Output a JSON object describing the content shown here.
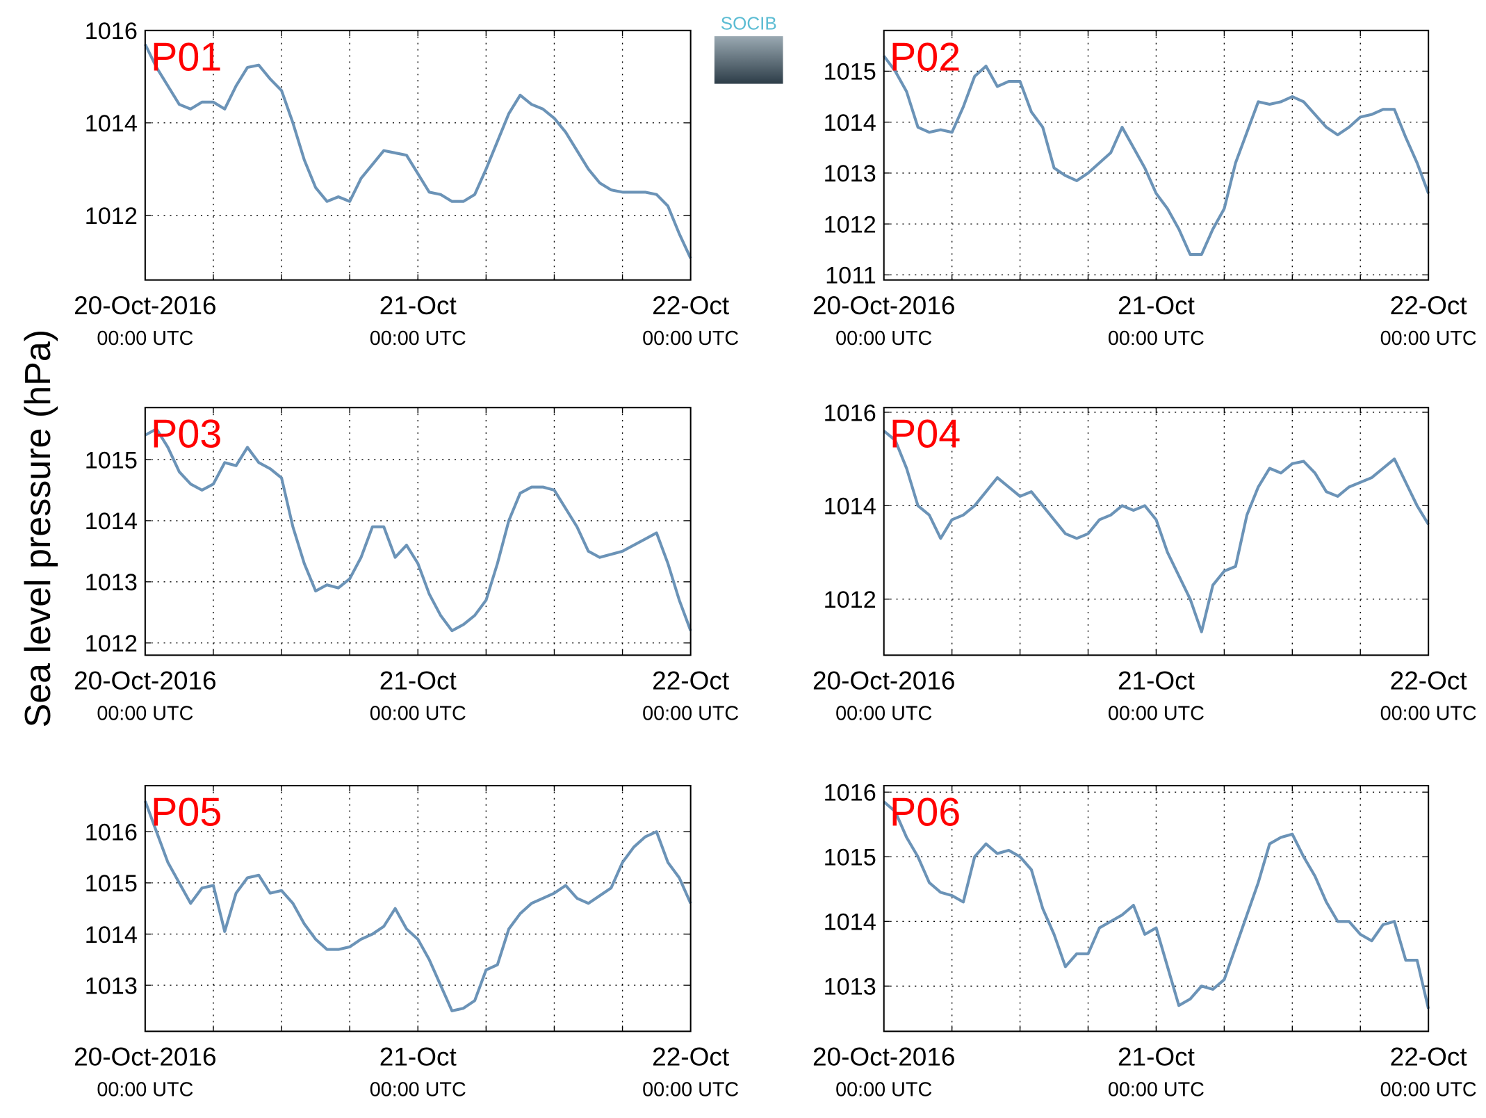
{
  "ylabel": "Sea level pressure (hPa)",
  "logo": "SOCIB",
  "chart_data": [
    {
      "type": "line",
      "title": "P01",
      "color": "#6b93b7",
      "grid": true,
      "xlim": [
        0,
        48
      ],
      "ylim": [
        1010.6,
        1016
      ],
      "yticks": [
        1012,
        1014,
        1016
      ],
      "xticks": [
        {
          "value": 0,
          "label": [
            "20-Oct-2016",
            "00:00 UTC"
          ]
        },
        {
          "value": 6,
          "label": null
        },
        {
          "value": 12,
          "label": null
        },
        {
          "value": 18,
          "label": null
        },
        {
          "value": 24,
          "label": [
            "21-Oct",
            "00:00 UTC"
          ]
        },
        {
          "value": 30,
          "label": null
        },
        {
          "value": 36,
          "label": null
        },
        {
          "value": 42,
          "label": null
        },
        {
          "value": 48,
          "label": [
            "22-Oct",
            "00:00 UTC"
          ]
        }
      ],
      "x": [
        0,
        1,
        2,
        3,
        4,
        5,
        6,
        7,
        8,
        9,
        10,
        11,
        12,
        13,
        14,
        15,
        16,
        17,
        18,
        19,
        20,
        21,
        22,
        23,
        24,
        25,
        26,
        27,
        28,
        29,
        30,
        31,
        32,
        33,
        34,
        35,
        36,
        37,
        38,
        39,
        40,
        41,
        42,
        43,
        44,
        45,
        46,
        47,
        48
      ],
      "values": [
        1015.7,
        1015.2,
        1014.8,
        1014.4,
        1014.3,
        1014.45,
        1014.45,
        1014.3,
        1014.8,
        1015.2,
        1015.25,
        1014.95,
        1014.7,
        1014.0,
        1013.2,
        1012.6,
        1012.3,
        1012.4,
        1012.3,
        1012.8,
        1013.1,
        1013.4,
        1013.35,
        1013.3,
        1012.9,
        1012.5,
        1012.45,
        1012.3,
        1012.3,
        1012.45,
        1013.0,
        1013.6,
        1014.2,
        1014.6,
        1014.4,
        1014.3,
        1014.1,
        1013.8,
        1013.4,
        1013.0,
        1012.7,
        1012.55,
        1012.5,
        1012.5,
        1012.5,
        1012.45,
        1012.2,
        1011.6,
        1011.07
      ]
    },
    {
      "type": "line",
      "title": "P02",
      "color": "#6b93b7",
      "grid": true,
      "xlim": [
        0,
        48
      ],
      "ylim": [
        1010.9,
        1015.8
      ],
      "yticks": [
        1011,
        1012,
        1013,
        1014,
        1015
      ],
      "xticks": [
        {
          "value": 0,
          "label": [
            "20-Oct-2016",
            "00:00 UTC"
          ]
        },
        {
          "value": 6,
          "label": null
        },
        {
          "value": 12,
          "label": null
        },
        {
          "value": 18,
          "label": null
        },
        {
          "value": 24,
          "label": [
            "21-Oct",
            "00:00 UTC"
          ]
        },
        {
          "value": 30,
          "label": null
        },
        {
          "value": 36,
          "label": null
        },
        {
          "value": 42,
          "label": null
        },
        {
          "value": 48,
          "label": [
            "22-Oct",
            "00:00 UTC"
          ]
        }
      ],
      "x": [
        0,
        1,
        2,
        3,
        4,
        5,
        6,
        7,
        8,
        9,
        10,
        11,
        12,
        13,
        14,
        15,
        16,
        17,
        18,
        19,
        20,
        21,
        22,
        23,
        24,
        25,
        26,
        27,
        28,
        29,
        30,
        31,
        32,
        33,
        34,
        35,
        36,
        37,
        38,
        39,
        40,
        41,
        42,
        43,
        44,
        45,
        46,
        47,
        48
      ],
      "values": [
        1015.3,
        1015.0,
        1014.6,
        1013.9,
        1013.8,
        1013.85,
        1013.8,
        1014.3,
        1014.9,
        1015.1,
        1014.7,
        1014.8,
        1014.8,
        1014.2,
        1013.9,
        1013.1,
        1012.95,
        1012.85,
        1013.0,
        1013.2,
        1013.4,
        1013.9,
        1013.5,
        1013.1,
        1012.6,
        1012.3,
        1011.9,
        1011.4,
        1011.4,
        1011.9,
        1012.3,
        1013.2,
        1013.8,
        1014.4,
        1014.35,
        1014.4,
        1014.5,
        1014.4,
        1014.15,
        1013.9,
        1013.75,
        1013.9,
        1014.1,
        1014.15,
        1014.25,
        1014.25,
        1013.7,
        1013.2,
        1012.6
      ]
    },
    {
      "type": "line",
      "title": "P03",
      "color": "#6b93b7",
      "grid": true,
      "xlim": [
        0,
        48
      ],
      "ylim": [
        1011.8,
        1015.85
      ],
      "yticks": [
        1012,
        1013,
        1014,
        1015
      ],
      "xticks": [
        {
          "value": 0,
          "label": [
            "20-Oct-2016",
            "00:00 UTC"
          ]
        },
        {
          "value": 6,
          "label": null
        },
        {
          "value": 12,
          "label": null
        },
        {
          "value": 18,
          "label": null
        },
        {
          "value": 24,
          "label": [
            "21-Oct",
            "00:00 UTC"
          ]
        },
        {
          "value": 30,
          "label": null
        },
        {
          "value": 36,
          "label": null
        },
        {
          "value": 42,
          "label": null
        },
        {
          "value": 48,
          "label": [
            "22-Oct",
            "00:00 UTC"
          ]
        }
      ],
      "x": [
        0,
        1,
        2,
        3,
        4,
        5,
        6,
        7,
        8,
        9,
        10,
        11,
        12,
        13,
        14,
        15,
        16,
        17,
        18,
        19,
        20,
        21,
        22,
        23,
        24,
        25,
        26,
        27,
        28,
        29,
        30,
        31,
        32,
        33,
        34,
        35,
        36,
        37,
        38,
        39,
        40,
        41,
        42,
        43,
        44,
        45,
        46,
        47,
        48
      ],
      "values": [
        1015.4,
        1015.5,
        1015.2,
        1014.8,
        1014.6,
        1014.5,
        1014.6,
        1014.95,
        1014.9,
        1015.2,
        1014.95,
        1014.85,
        1014.7,
        1013.9,
        1013.3,
        1012.85,
        1012.95,
        1012.9,
        1013.05,
        1013.4,
        1013.9,
        1013.9,
        1013.4,
        1013.6,
        1013.3,
        1012.8,
        1012.45,
        1012.2,
        1012.3,
        1012.45,
        1012.7,
        1013.3,
        1014.0,
        1014.45,
        1014.55,
        1014.55,
        1014.5,
        1014.2,
        1013.9,
        1013.5,
        1013.4,
        1013.45,
        1013.5,
        1013.6,
        1013.7,
        1013.8,
        1013.3,
        1012.7,
        1012.2
      ]
    },
    {
      "type": "line",
      "title": "P04",
      "color": "#6b93b7",
      "grid": true,
      "xlim": [
        0,
        48
      ],
      "ylim": [
        1010.8,
        1016.1
      ],
      "yticks": [
        1012,
        1014,
        1016
      ],
      "xticks": [
        {
          "value": 0,
          "label": [
            "20-Oct-2016",
            "00:00 UTC"
          ]
        },
        {
          "value": 6,
          "label": null
        },
        {
          "value": 12,
          "label": null
        },
        {
          "value": 18,
          "label": null
        },
        {
          "value": 24,
          "label": [
            "21-Oct",
            "00:00 UTC"
          ]
        },
        {
          "value": 30,
          "label": null
        },
        {
          "value": 36,
          "label": null
        },
        {
          "value": 42,
          "label": null
        },
        {
          "value": 48,
          "label": [
            "22-Oct",
            "00:00 UTC"
          ]
        }
      ],
      "x": [
        0,
        1,
        2,
        3,
        4,
        5,
        6,
        7,
        8,
        9,
        10,
        11,
        12,
        13,
        14,
        15,
        16,
        17,
        18,
        19,
        20,
        21,
        22,
        23,
        24,
        25,
        26,
        27,
        28,
        29,
        30,
        31,
        32,
        33,
        34,
        35,
        36,
        37,
        38,
        39,
        40,
        41,
        42,
        43,
        44,
        45,
        46,
        47,
        48
      ],
      "values": [
        1015.6,
        1015.4,
        1014.8,
        1014.0,
        1013.8,
        1013.3,
        1013.7,
        1013.8,
        1014.0,
        1014.3,
        1014.6,
        1014.4,
        1014.2,
        1014.3,
        1014.0,
        1013.7,
        1013.4,
        1013.3,
        1013.4,
        1013.7,
        1013.8,
        1014.0,
        1013.9,
        1014.0,
        1013.7,
        1013.0,
        1012.5,
        1012.0,
        1011.3,
        1012.3,
        1012.6,
        1012.7,
        1013.8,
        1014.4,
        1014.8,
        1014.7,
        1014.9,
        1014.95,
        1014.7,
        1014.3,
        1014.2,
        1014.4,
        1014.5,
        1014.6,
        1014.8,
        1015.0,
        1014.5,
        1014.0,
        1013.6
      ]
    },
    {
      "type": "line",
      "title": "P05",
      "color": "#6b93b7",
      "grid": true,
      "xlim": [
        0,
        48
      ],
      "ylim": [
        1012.1,
        1016.9
      ],
      "yticks": [
        1013,
        1014,
        1015,
        1016
      ],
      "xticks": [
        {
          "value": 0,
          "label": [
            "20-Oct-2016",
            "00:00 UTC"
          ]
        },
        {
          "value": 6,
          "label": null
        },
        {
          "value": 12,
          "label": null
        },
        {
          "value": 18,
          "label": null
        },
        {
          "value": 24,
          "label": [
            "21-Oct",
            "00:00 UTC"
          ]
        },
        {
          "value": 30,
          "label": null
        },
        {
          "value": 36,
          "label": null
        },
        {
          "value": 42,
          "label": null
        },
        {
          "value": 48,
          "label": [
            "22-Oct",
            "00:00 UTC"
          ]
        }
      ],
      "x": [
        0,
        1,
        2,
        3,
        4,
        5,
        6,
        7,
        8,
        9,
        10,
        11,
        12,
        13,
        14,
        15,
        16,
        17,
        18,
        19,
        20,
        21,
        22,
        23,
        24,
        25,
        26,
        27,
        28,
        29,
        30,
        31,
        32,
        33,
        34,
        35,
        36,
        37,
        38,
        39,
        40,
        41,
        42,
        43,
        44,
        45,
        46,
        47,
        48
      ],
      "values": [
        1016.6,
        1016.0,
        1015.4,
        1015.0,
        1014.6,
        1014.9,
        1014.95,
        1014.05,
        1014.8,
        1015.1,
        1015.15,
        1014.8,
        1014.85,
        1014.6,
        1014.2,
        1013.9,
        1013.7,
        1013.7,
        1013.75,
        1013.9,
        1014.0,
        1014.15,
        1014.5,
        1014.1,
        1013.9,
        1013.5,
        1013.0,
        1012.5,
        1012.55,
        1012.7,
        1013.3,
        1013.4,
        1014.1,
        1014.4,
        1014.6,
        1014.7,
        1014.8,
        1014.95,
        1014.7,
        1014.6,
        1014.75,
        1014.9,
        1015.4,
        1015.7,
        1015.9,
        1016.0,
        1015.4,
        1015.1,
        1014.6
      ]
    },
    {
      "type": "line",
      "title": "P06",
      "color": "#6b93b7",
      "grid": true,
      "xlim": [
        0,
        48
      ],
      "ylim": [
        1012.3,
        1016.1
      ],
      "yticks": [
        1013,
        1014,
        1015,
        1016
      ],
      "xticks": [
        {
          "value": 0,
          "label": [
            "20-Oct-2016",
            "00:00 UTC"
          ]
        },
        {
          "value": 6,
          "label": null
        },
        {
          "value": 12,
          "label": null
        },
        {
          "value": 18,
          "label": null
        },
        {
          "value": 24,
          "label": [
            "21-Oct",
            "00:00 UTC"
          ]
        },
        {
          "value": 30,
          "label": null
        },
        {
          "value": 36,
          "label": null
        },
        {
          "value": 42,
          "label": null
        },
        {
          "value": 48,
          "label": [
            "22-Oct",
            "00:00 UTC"
          ]
        }
      ],
      "x": [
        0,
        1,
        2,
        3,
        4,
        5,
        6,
        7,
        8,
        9,
        10,
        11,
        12,
        13,
        14,
        15,
        16,
        17,
        18,
        19,
        20,
        21,
        22,
        23,
        24,
        25,
        26,
        27,
        28,
        29,
        30,
        31,
        32,
        33,
        34,
        35,
        36,
        37,
        38,
        39,
        40,
        41,
        42,
        43,
        44,
        45,
        46,
        47,
        48
      ],
      "values": [
        1015.85,
        1015.7,
        1015.3,
        1015.0,
        1014.6,
        1014.45,
        1014.4,
        1014.3,
        1015.0,
        1015.2,
        1015.05,
        1015.1,
        1015.0,
        1014.8,
        1014.2,
        1013.8,
        1013.3,
        1013.5,
        1013.5,
        1013.9,
        1014.0,
        1014.1,
        1014.25,
        1013.8,
        1013.9,
        1013.3,
        1012.7,
        1012.8,
        1013.0,
        1012.95,
        1013.1,
        1013.6,
        1014.1,
        1014.6,
        1015.2,
        1015.3,
        1015.35,
        1015.0,
        1014.7,
        1014.3,
        1014.0,
        1014.0,
        1013.8,
        1013.7,
        1013.95,
        1014.0,
        1013.4,
        1013.4,
        1012.65
      ]
    }
  ]
}
